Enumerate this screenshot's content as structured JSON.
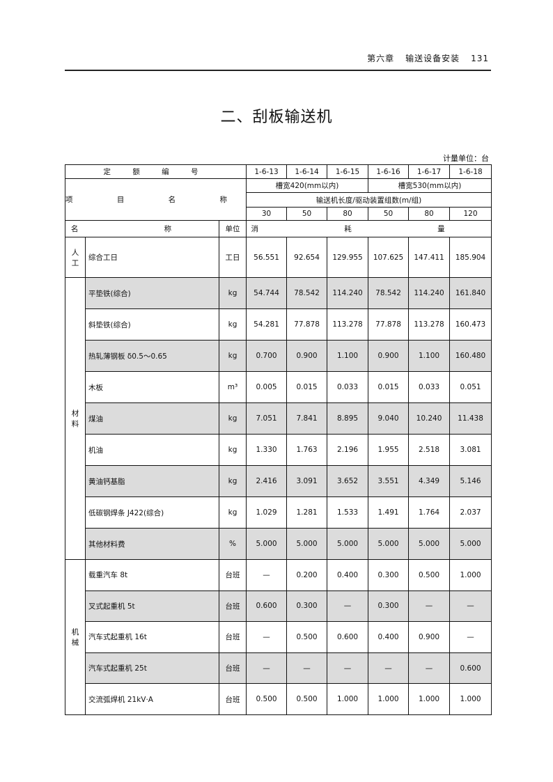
{
  "running_head": {
    "chapter": "第六章",
    "section": "输送设备安装",
    "page_number": "131"
  },
  "title": "二、刮板输送机",
  "unit_note": "计量单位：台",
  "table": {
    "quota_code_label": "定 额 编 号",
    "quota_codes": [
      "1-6-13",
      "1-6-14",
      "1-6-15",
      "1-6-16",
      "1-6-17",
      "1-6-18"
    ],
    "item_name_label": "项 目 名 称",
    "groups": [
      "槽宽420(mm以内)",
      "槽宽530(mm以内)"
    ],
    "subheader": "输送机长度/驱动装置组数(m/组)",
    "lengths": [
      "30",
      "50",
      "80",
      "50",
      "80",
      "120"
    ],
    "col_name": "名 称",
    "col_unit": "单位",
    "col_consumption": "消 耗 量",
    "labor": {
      "category": [
        "人",
        "工"
      ],
      "rows": [
        {
          "name": "综合工日",
          "unit": "工日",
          "values": [
            "56.551",
            "92.654",
            "129.955",
            "107.625",
            "147.411",
            "185.904"
          ]
        }
      ]
    },
    "materials": {
      "category": [
        "材",
        "料"
      ],
      "rows": [
        {
          "name": "平垫铁(综合)",
          "unit": "kg",
          "values": [
            "54.744",
            "78.542",
            "114.240",
            "78.542",
            "114.240",
            "161.840"
          ]
        },
        {
          "name": "斜垫铁(综合)",
          "unit": "kg",
          "values": [
            "54.281",
            "77.878",
            "113.278",
            "77.878",
            "113.278",
            "160.473"
          ]
        },
        {
          "name": "热轧薄钢板 δ0.5～0.65",
          "unit": "kg",
          "values": [
            "0.700",
            "0.900",
            "1.100",
            "0.900",
            "1.100",
            "160.480"
          ]
        },
        {
          "name": "木板",
          "unit": "m³",
          "values": [
            "0.005",
            "0.015",
            "0.033",
            "0.015",
            "0.033",
            "0.051"
          ]
        },
        {
          "name": "煤油",
          "unit": "kg",
          "values": [
            "7.051",
            "7.841",
            "8.895",
            "9.040",
            "10.240",
            "11.438"
          ]
        },
        {
          "name": "机油",
          "unit": "kg",
          "values": [
            "1.330",
            "1.763",
            "2.196",
            "1.955",
            "2.518",
            "3.081"
          ]
        },
        {
          "name": "黄油钙基脂",
          "unit": "kg",
          "values": [
            "2.416",
            "3.091",
            "3.652",
            "3.551",
            "4.349",
            "5.146"
          ]
        },
        {
          "name": "低碳钢焊条 J422(综合)",
          "unit": "kg",
          "values": [
            "1.029",
            "1.281",
            "1.533",
            "1.491",
            "1.764",
            "2.037"
          ]
        },
        {
          "name": "其他材料费",
          "unit": "%",
          "values": [
            "5.000",
            "5.000",
            "5.000",
            "5.000",
            "5.000",
            "5.000"
          ]
        }
      ]
    },
    "machinery": {
      "category": [
        "机",
        "械"
      ],
      "rows": [
        {
          "name": "载重汽车 8t",
          "unit": "台班",
          "values": [
            "—",
            "0.200",
            "0.400",
            "0.300",
            "0.500",
            "1.000"
          ]
        },
        {
          "name": "叉式起重机 5t",
          "unit": "台班",
          "values": [
            "0.600",
            "0.300",
            "—",
            "0.300",
            "—",
            "—"
          ]
        },
        {
          "name": "汽车式起重机 16t",
          "unit": "台班",
          "values": [
            "—",
            "0.500",
            "0.600",
            "0.400",
            "0.900",
            "—"
          ]
        },
        {
          "name": "汽车式起重机 25t",
          "unit": "台班",
          "values": [
            "—",
            "—",
            "—",
            "—",
            "—",
            "0.600"
          ]
        },
        {
          "name": "交流弧焊机 21kV·A",
          "unit": "台班",
          "values": [
            "0.500",
            "0.500",
            "1.000",
            "1.000",
            "1.000",
            "1.000"
          ]
        }
      ]
    }
  }
}
